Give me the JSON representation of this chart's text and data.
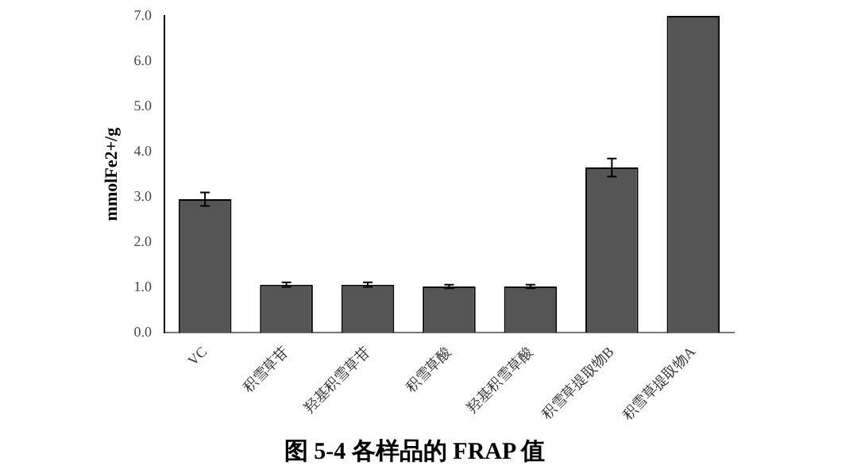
{
  "chart_data": {
    "type": "bar",
    "title": "图 5-4 各样品的 FRAP 值",
    "ylabel": "mmolFe2+/g",
    "categories": [
      "VC",
      "积雪草苷",
      "羟基积雪草苷",
      "积雪草酸",
      "羟基积雪草酸",
      "积雪草提取物B",
      "积雪草提取物A"
    ],
    "values": [
      2.95,
      1.06,
      1.06,
      1.02,
      1.02,
      3.65,
      7.0
    ],
    "errors": [
      0.15,
      0.05,
      0.05,
      0.04,
      0.04,
      0.2,
      null
    ],
    "color": "#555555",
    "ylim": [
      0,
      7
    ],
    "yticks": [
      {
        "value": 0,
        "label": "0.0"
      },
      {
        "value": 1,
        "label": "1.0"
      },
      {
        "value": 2,
        "label": "2.0"
      },
      {
        "value": 3,
        "label": "3.0"
      },
      {
        "value": 4,
        "label": "4.0"
      },
      {
        "value": 5,
        "label": "5.0"
      },
      {
        "value": 6,
        "label": "6.0"
      },
      {
        "value": 7,
        "label": "7.0"
      }
    ],
    "grid": false,
    "legend": false
  }
}
